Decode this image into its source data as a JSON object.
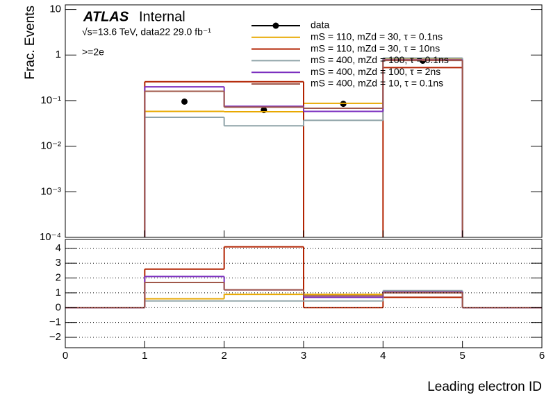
{
  "chart_data": [
    {
      "type": "histogram",
      "log_y": true,
      "ylabel": "Frac. Events",
      "annotations": [
        "ATLAS",
        "Internal",
        "√s=13.6 TeV, data22 29.0 fb⁻¹",
        ">=2e"
      ],
      "bins": [
        0,
        1,
        2,
        3,
        4,
        5,
        6
      ],
      "xlim": [
        0,
        6
      ],
      "ylim": [
        0.0001,
        12.6
      ],
      "yticks": [
        {
          "value": 0.0001,
          "label": "10⁻⁴"
        },
        {
          "value": 0.001,
          "label": "10⁻³"
        },
        {
          "value": 0.01,
          "label": "10⁻²"
        },
        {
          "value": 0.1,
          "label": "10⁻¹"
        },
        1,
        10
      ],
      "series": [
        {
          "name": "data",
          "color": "#000000",
          "draw": "markers",
          "values": [
            null,
            0.095,
            0.062,
            0.085,
            0.75,
            null
          ]
        },
        {
          "name": "mS = 110, mZd = 30, τ = 0.1ns",
          "color": "#e8a800",
          "draw": "step",
          "values": [
            0,
            0.058,
            0.057,
            0.087,
            0.82,
            0
          ]
        },
        {
          "name": "mS = 110, mZd = 30, τ = 10ns",
          "color": "#b22200",
          "draw": "step",
          "values": [
            0,
            0.26,
            0.26,
            0,
            0.53,
            0
          ]
        },
        {
          "name": "mS = 400, mZd = 100, τ = 0.1ns",
          "color": "#8fa3a8",
          "draw": "step",
          "values": [
            0,
            0.043,
            0.028,
            0.037,
            0.86,
            0
          ]
        },
        {
          "name": "mS = 400, mZd = 100, τ = 2ns",
          "color": "#7b2fbf",
          "draw": "step",
          "values": [
            0,
            0.2,
            0.075,
            0.058,
            0.78,
            0
          ]
        },
        {
          "name": "mS = 400, mZd = 10, τ = 0.1ns",
          "color": "#a0584a",
          "draw": "step",
          "values": [
            0,
            0.16,
            0.072,
            0.068,
            0.76,
            0
          ]
        }
      ]
    },
    {
      "type": "histogram",
      "log_y": false,
      "grid": true,
      "xlabel": "Leading electron ID",
      "bins": [
        0,
        1,
        2,
        3,
        4,
        5,
        6
      ],
      "xlim": [
        0,
        6
      ],
      "xticks": [
        0,
        1,
        2,
        3,
        4,
        5,
        6
      ],
      "ylim": [
        -2.7,
        4.6
      ],
      "yticks": [
        {
          "value": -2,
          "label": "−2"
        },
        {
          "value": -1,
          "label": "−1"
        },
        0,
        1,
        2,
        3,
        4
      ],
      "series": [
        {
          "color": "#e8a800",
          "draw": "step",
          "values": [
            0,
            0.6,
            0.9,
            0.9,
            1.1,
            0
          ]
        },
        {
          "color": "#b22200",
          "draw": "step",
          "values": [
            0,
            2.6,
            4.1,
            0,
            0.7,
            0
          ]
        },
        {
          "color": "#8fa3a8",
          "draw": "step",
          "values": [
            0,
            0.45,
            0.45,
            0.45,
            1.15,
            0
          ]
        },
        {
          "color": "#7b2fbf",
          "draw": "step",
          "values": [
            0,
            2.1,
            1.2,
            0.7,
            1.05,
            0
          ]
        },
        {
          "color": "#a0584a",
          "draw": "step",
          "values": [
            0,
            1.7,
            1.2,
            0.8,
            1.0,
            0
          ]
        }
      ]
    }
  ]
}
